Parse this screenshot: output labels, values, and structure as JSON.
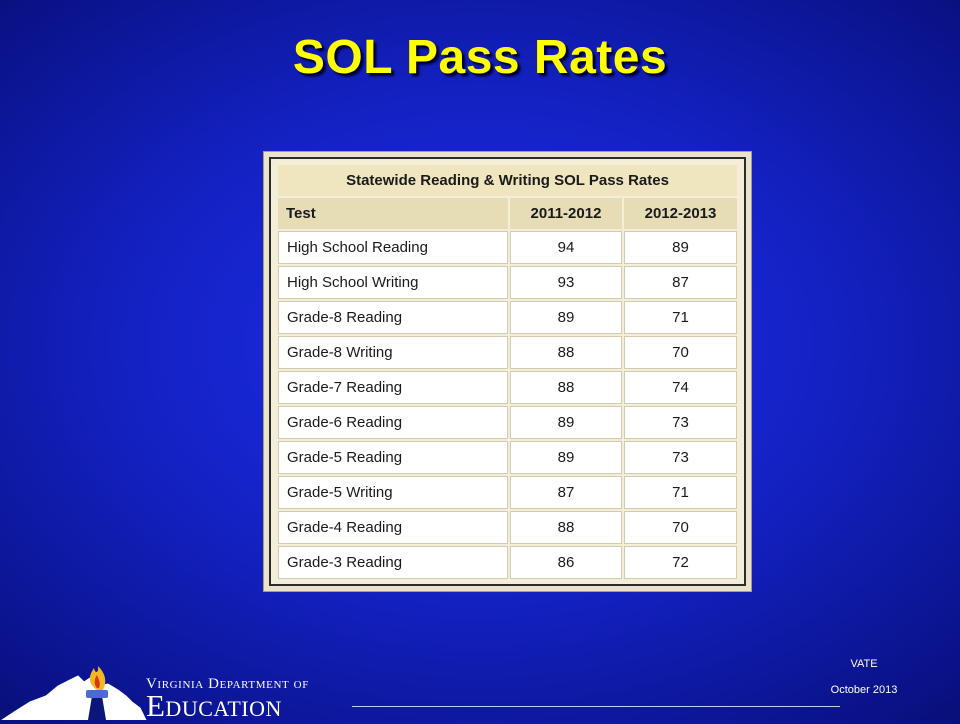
{
  "slide": {
    "title": "SOL Pass Rates"
  },
  "table": {
    "caption": "Statewide Reading & Writing SOL Pass Rates",
    "headers": [
      "Test",
      "2011-2012",
      "2012-2013"
    ],
    "rows": [
      [
        "High School Reading",
        "94",
        "89"
      ],
      [
        "High School Writing",
        "93",
        "87"
      ],
      [
        "Grade-8 Reading",
        "89",
        "71"
      ],
      [
        "Grade-8 Writing",
        "88",
        "70"
      ],
      [
        "Grade-7 Reading",
        "88",
        "74"
      ],
      [
        "Grade-6 Reading",
        "89",
        "73"
      ],
      [
        "Grade-5 Reading",
        "89",
        "73"
      ],
      [
        "Grade-5 Writing",
        "87",
        "71"
      ],
      [
        "Grade-4 Reading",
        "88",
        "70"
      ],
      [
        "Grade-3 Reading",
        "86",
        "72"
      ]
    ]
  },
  "footer": {
    "org_line1": "Virginia Department of",
    "org_line2": "Education",
    "vate": "VATE",
    "date": "October 2013"
  },
  "colors": {
    "title": "#ffff00",
    "background": "#1422c4",
    "torch_flame": "#f5b71f"
  },
  "icons": {
    "logo": "virginia-state-map-torch-icon"
  }
}
